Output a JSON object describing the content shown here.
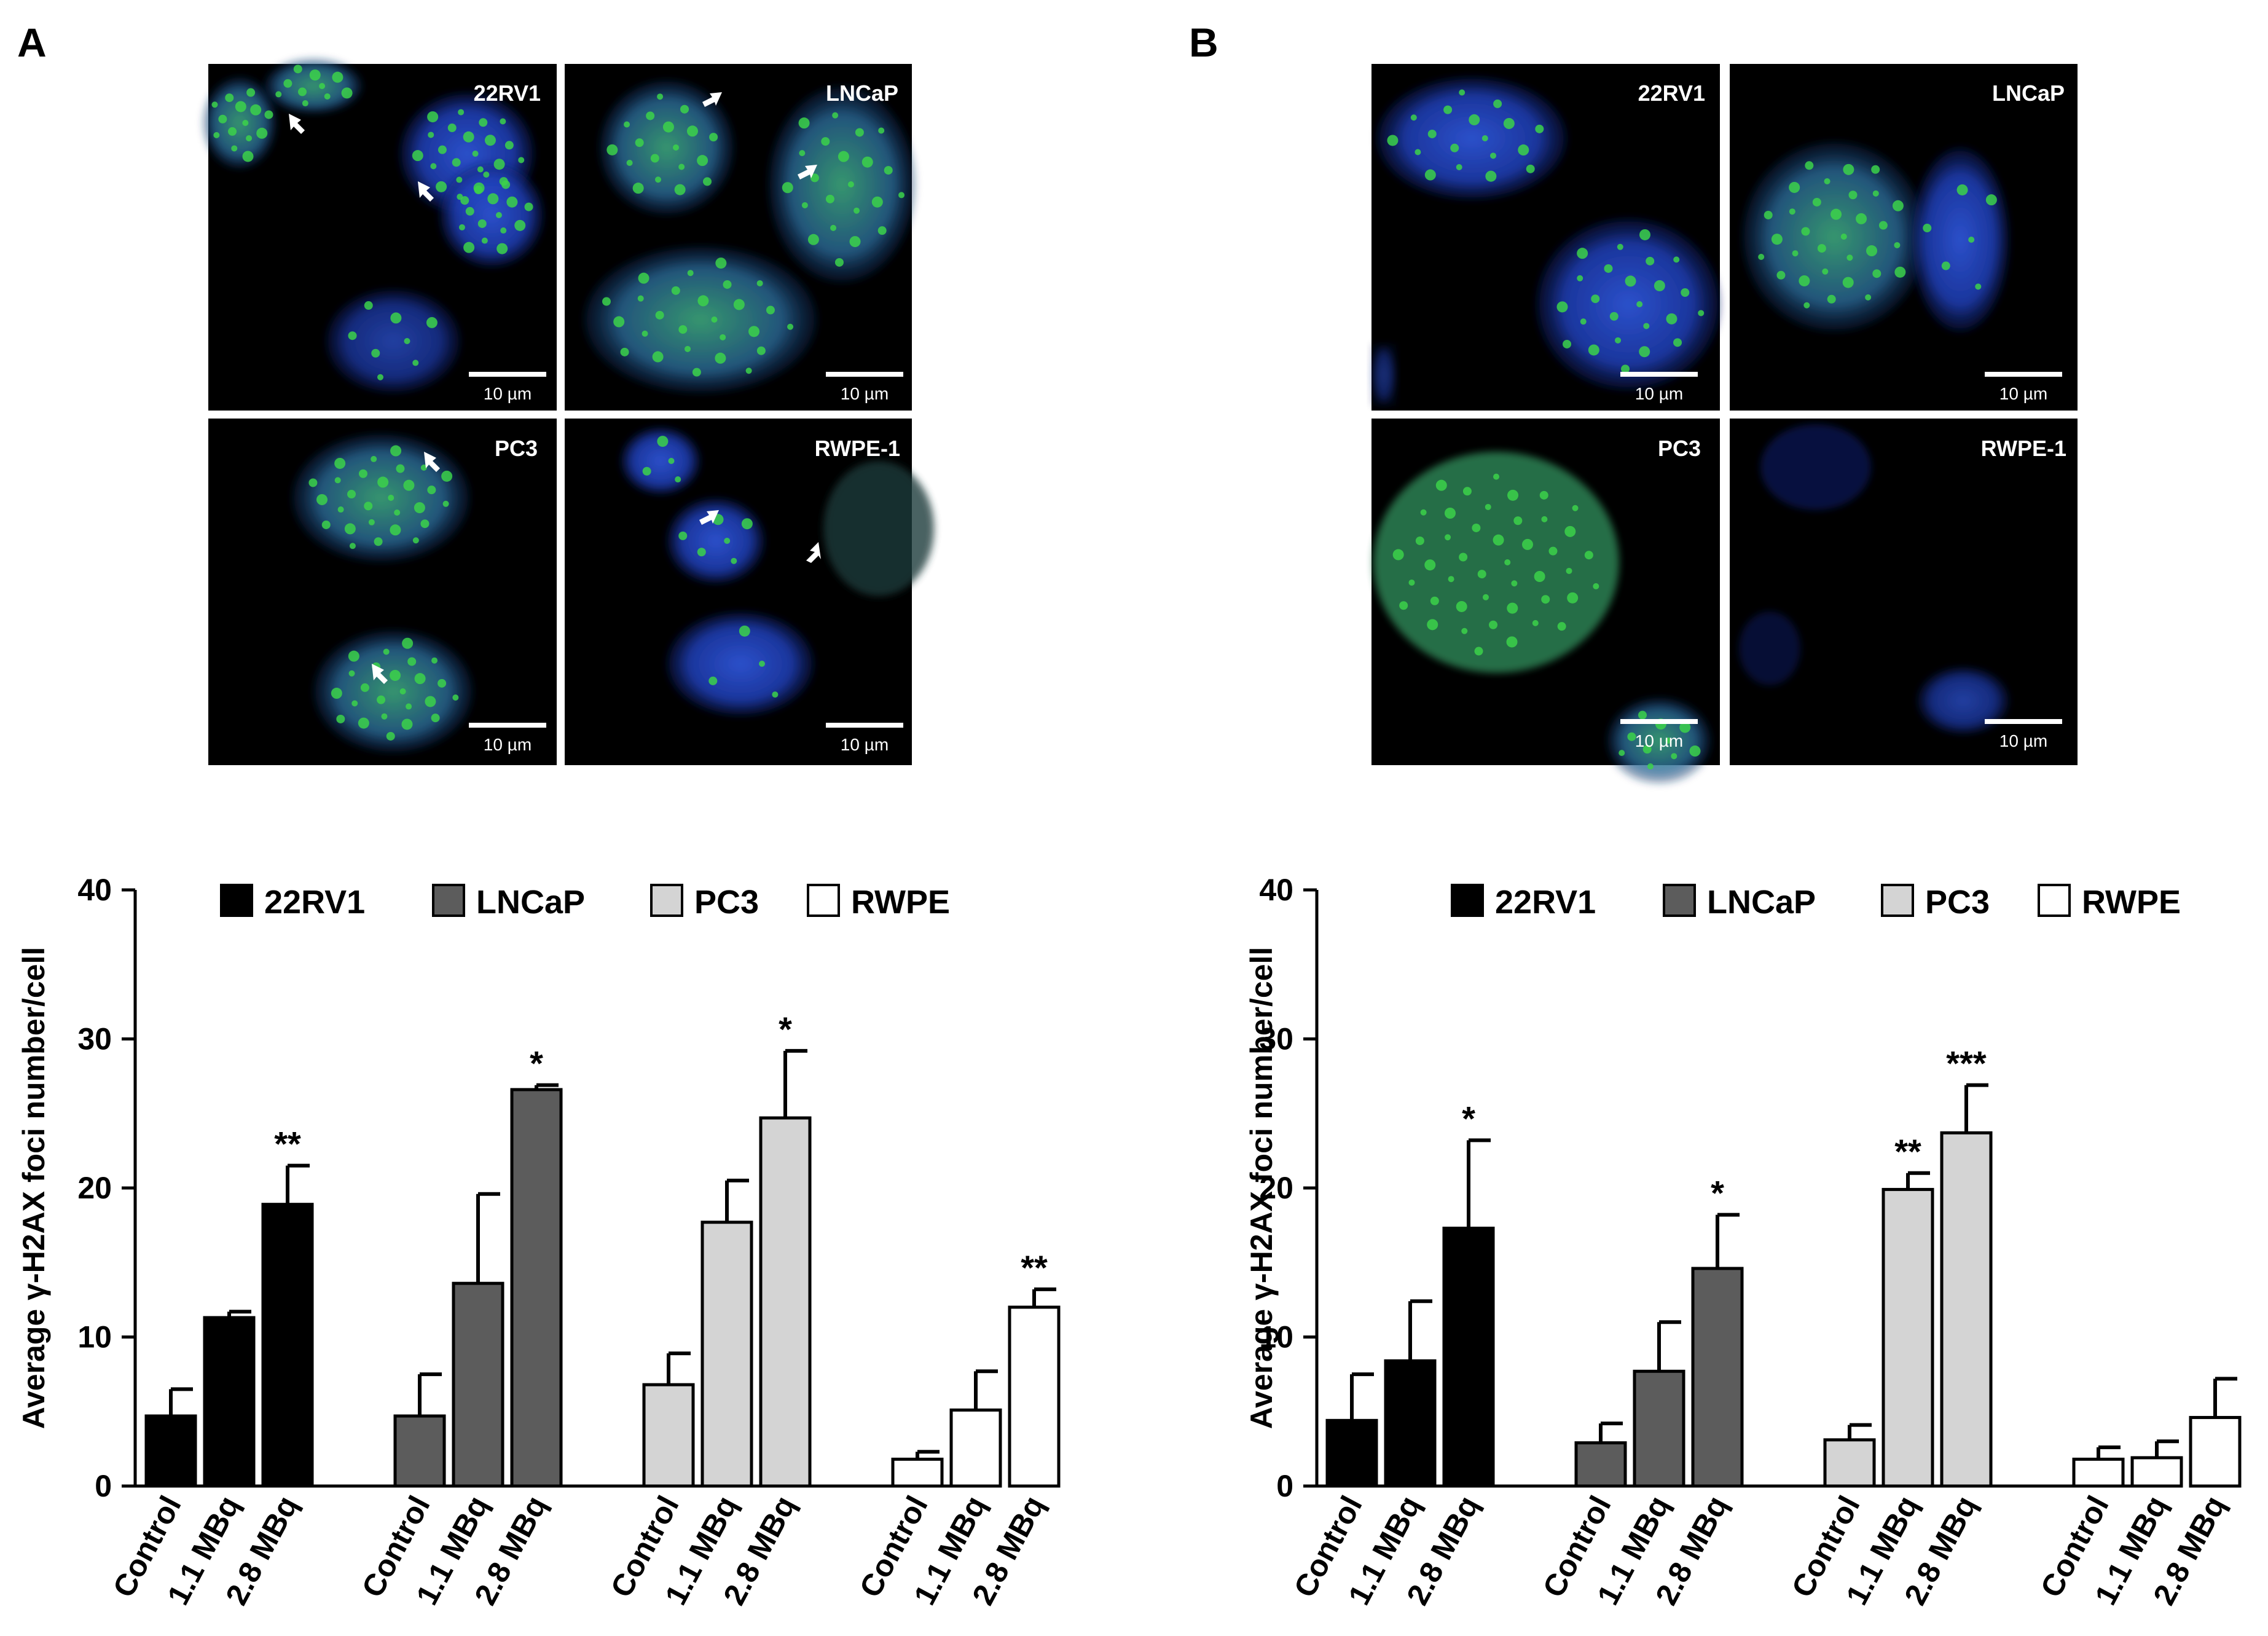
{
  "panels": [
    {
      "label": "A",
      "micrographs": [
        {
          "cell_line": "22RV1",
          "scale_bar": "10 µm"
        },
        {
          "cell_line": "LNCaP",
          "scale_bar": "10 µm"
        },
        {
          "cell_line": "PC3",
          "scale_bar": "10 µm"
        },
        {
          "cell_line": "RWPE-1",
          "scale_bar": "10 µm"
        }
      ]
    },
    {
      "label": "B",
      "micrographs": [
        {
          "cell_line": "22RV1",
          "scale_bar": "10 µm"
        },
        {
          "cell_line": "LNCaP",
          "scale_bar": "10 µm"
        },
        {
          "cell_line": "PC3",
          "scale_bar": "10 µm"
        },
        {
          "cell_line": "RWPE-1",
          "scale_bar": "10 µm"
        }
      ]
    }
  ],
  "colors": {
    "22RV1": "#000000",
    "LNCaP": "#5c5c5c",
    "PC3": "#d4d4d4",
    "RWPE": "#ffffff",
    "nucleus": "#1f3fb8",
    "foci": "#3cd24a",
    "micrograph_bg": "#000000"
  },
  "chart_data": [
    {
      "panel": "A",
      "type": "bar",
      "ylabel": "Average γ-H2AX foci number/cell",
      "ylim": [
        0,
        40
      ],
      "yticks": [
        0,
        10,
        20,
        30,
        40
      ],
      "legend_position": "top",
      "categories": [
        "Control",
        "1.1 MBq",
        "2.8 MBq"
      ],
      "series": [
        {
          "name": "22RV1",
          "values": [
            4.7,
            11.3,
            18.9
          ],
          "errors": [
            1.8,
            0.4,
            2.6
          ],
          "significance": [
            "",
            "",
            "**"
          ]
        },
        {
          "name": "LNCaP",
          "values": [
            4.7,
            13.6,
            26.6
          ],
          "errors": [
            2.8,
            6.0,
            0.3
          ],
          "significance": [
            "",
            "",
            "*"
          ]
        },
        {
          "name": "PC3",
          "values": [
            6.8,
            17.7,
            24.7
          ],
          "errors": [
            2.1,
            2.8,
            4.5
          ],
          "significance": [
            "",
            "",
            "*"
          ]
        },
        {
          "name": "RWPE",
          "values": [
            1.8,
            5.1,
            12.0
          ],
          "errors": [
            0.5,
            2.6,
            1.2
          ],
          "significance": [
            "",
            "",
            "**"
          ]
        }
      ]
    },
    {
      "panel": "B",
      "type": "bar",
      "ylabel": "Average γ-H2AX foci number/cell",
      "ylim": [
        0,
        40
      ],
      "yticks": [
        0,
        10,
        20,
        30,
        40
      ],
      "legend_position": "top",
      "categories": [
        "Control",
        "1.1 MBq",
        "2.8 MBq"
      ],
      "series": [
        {
          "name": "22RV1",
          "values": [
            4.4,
            8.4,
            17.3
          ],
          "errors": [
            3.1,
            4.0,
            5.9
          ],
          "significance": [
            "",
            "",
            "*"
          ]
        },
        {
          "name": "LNCaP",
          "values": [
            2.9,
            7.7,
            14.6
          ],
          "errors": [
            1.3,
            3.3,
            3.6
          ],
          "significance": [
            "",
            "",
            "*"
          ]
        },
        {
          "name": "PC3",
          "values": [
            3.1,
            19.9,
            23.7
          ],
          "errors": [
            1.0,
            1.1,
            3.2
          ],
          "significance": [
            "",
            "**",
            "***"
          ]
        },
        {
          "name": "RWPE",
          "values": [
            1.8,
            1.9,
            4.6
          ],
          "errors": [
            0.8,
            1.1,
            2.6
          ],
          "significance": [
            "",
            "",
            ""
          ]
        }
      ]
    }
  ]
}
